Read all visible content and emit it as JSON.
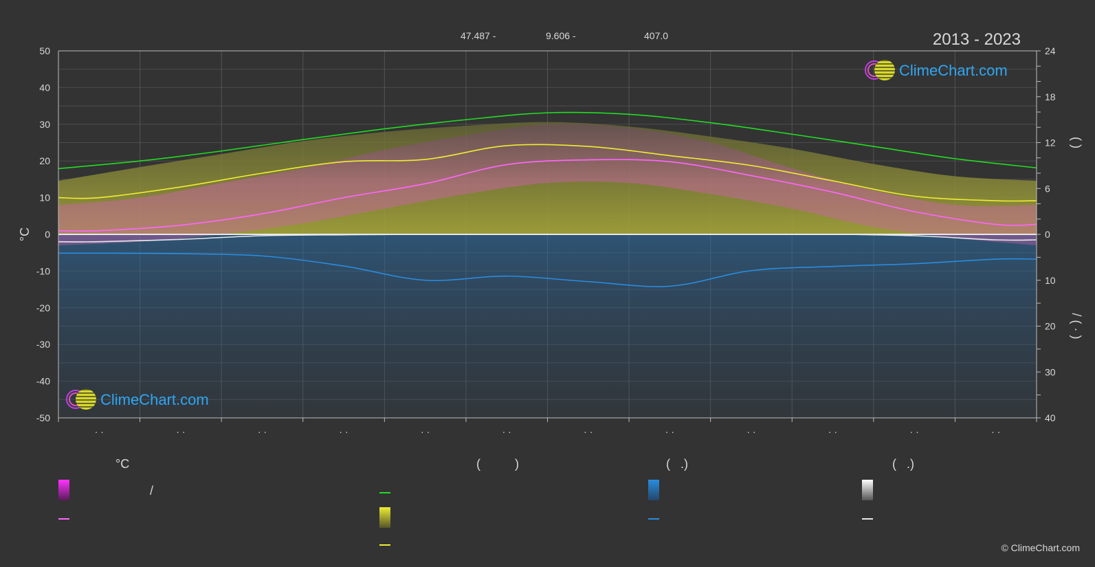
{
  "header": {
    "lat": "47.487 -",
    "lon": "9.606 -",
    "elev": "407.0",
    "period": "2013 - 2023"
  },
  "brand": {
    "logo_text": "ClimeChart.com",
    "copyright": "© ClimeChart.com"
  },
  "colors": {
    "background": "#333333",
    "daylight": "#22dd22",
    "sunshine": "#eeee33",
    "avg_temp": "#ff66ff",
    "rain": "#2a8cdf",
    "snow": "#e8e8e8",
    "temp_fill": "#d060b0",
    "sun_fill": "#a6a63a",
    "brand_blue": "#2ea6f2"
  },
  "chart_data": {
    "type": "line",
    "x_label": "",
    "x_tick_labels": [
      "· ·",
      "· ·",
      "· ·",
      "· ·",
      "· ·",
      "· ·",
      "· ·",
      "· ·",
      "· ·",
      "· ·",
      "· ·",
      "· ·"
    ],
    "left_axis": {
      "label": "°C",
      "range": [
        -50,
        50
      ],
      "ticks": [
        50,
        40,
        30,
        20,
        10,
        0,
        -10,
        -20,
        -30,
        -40,
        -50
      ]
    },
    "right_axis_top": {
      "range": [
        0,
        24
      ],
      "ticks": [
        24,
        18,
        12,
        6,
        0
      ],
      "label": "(   )"
    },
    "right_axis_bottom": {
      "range": [
        0,
        40
      ],
      "ticks": [
        0,
        10,
        20,
        30,
        40
      ],
      "label": "/ (  ·  )"
    },
    "x_domain": [
      0,
      12
    ],
    "series": [
      {
        "name": "",
        "axis": "hours",
        "x": [
          0,
          1,
          2,
          3,
          4,
          5,
          6,
          7,
          8,
          9,
          10,
          11,
          12
        ],
        "values": [
          8.6,
          9.6,
          10.9,
          12.4,
          13.8,
          15.0,
          15.9,
          15.7,
          14.6,
          13.1,
          11.5,
          9.9,
          8.7
        ]
      },
      {
        "name": "",
        "axis": "hours",
        "x": [
          0,
          0.5,
          1.5,
          2.5,
          3.5,
          4.5,
          5.5,
          6.5,
          7.5,
          8.5,
          9.5,
          10.5,
          11.5,
          12
        ],
        "values": [
          4.8,
          4.8,
          6.2,
          8.0,
          9.5,
          9.8,
          11.6,
          11.5,
          10.3,
          9.0,
          7.0,
          5.0,
          4.4,
          4.4
        ]
      },
      {
        "name": "",
        "axis": "celsius",
        "x": [
          0,
          0.5,
          1.5,
          2.5,
          3.5,
          4.5,
          5.5,
          6.5,
          7.5,
          8.5,
          9.5,
          10.5,
          11.5,
          12
        ],
        "values": [
          1.0,
          1.0,
          2.5,
          5.6,
          10.0,
          13.8,
          19.0,
          20.3,
          19.8,
          16.0,
          11.5,
          6.2,
          2.7,
          2.7
        ]
      },
      {
        "name": "",
        "axis": "mm",
        "x": [
          0,
          0.5,
          1.5,
          2.5,
          3.5,
          4.5,
          5.5,
          6.5,
          7.5,
          8.5,
          9.5,
          10.5,
          11.5,
          12
        ],
        "values": [
          4.1,
          4.1,
          4.2,
          4.7,
          6.9,
          10.0,
          9.1,
          10.3,
          11.3,
          7.9,
          7.0,
          6.4,
          5.4,
          5.4
        ]
      },
      {
        "name": "",
        "axis": "cm",
        "x": [
          0,
          0.5,
          1.5,
          2.5,
          3.5,
          4.5,
          5.5,
          6.5,
          7.5,
          8.5,
          9.5,
          10.5,
          11.5,
          12
        ],
        "values": [
          1.6,
          1.6,
          1.1,
          0.3,
          0.1,
          0,
          0,
          0,
          0,
          0,
          0,
          0.3,
          1.2,
          1.2
        ]
      }
    ],
    "bands": [
      {
        "name": "",
        "axis": "celsius",
        "x": [
          0,
          1,
          2,
          3,
          4,
          5,
          6,
          7,
          8,
          9,
          10,
          11,
          12
        ],
        "low": [
          -3,
          -2,
          0,
          3,
          7,
          11,
          14,
          14,
          11,
          7,
          2,
          -1,
          -3
        ],
        "high": [
          8,
          10,
          14,
          18,
          23,
          27,
          30,
          29,
          25,
          18,
          12,
          8,
          8
        ]
      },
      {
        "name": "",
        "axis": "hours",
        "x": [
          0,
          1,
          2,
          3,
          4,
          5,
          6,
          7,
          8,
          9,
          10,
          11,
          12
        ],
        "high": [
          7.0,
          8.8,
          10.5,
          12.2,
          13.4,
          14.2,
          14.7,
          14.1,
          12.8,
          11.2,
          9.2,
          7.6,
          7.0
        ]
      }
    ]
  },
  "legend": {
    "col1": {
      "heading": "°C",
      "row1": "/",
      "row2": ""
    },
    "col2": {
      "heading": "(          )",
      "row1": "",
      "row2": "",
      "row3": ""
    },
    "col3": {
      "heading": "(   .)",
      "row1": "",
      "row2": ""
    },
    "col4": {
      "heading": "(   .)",
      "row1": "",
      "row2": ""
    }
  }
}
